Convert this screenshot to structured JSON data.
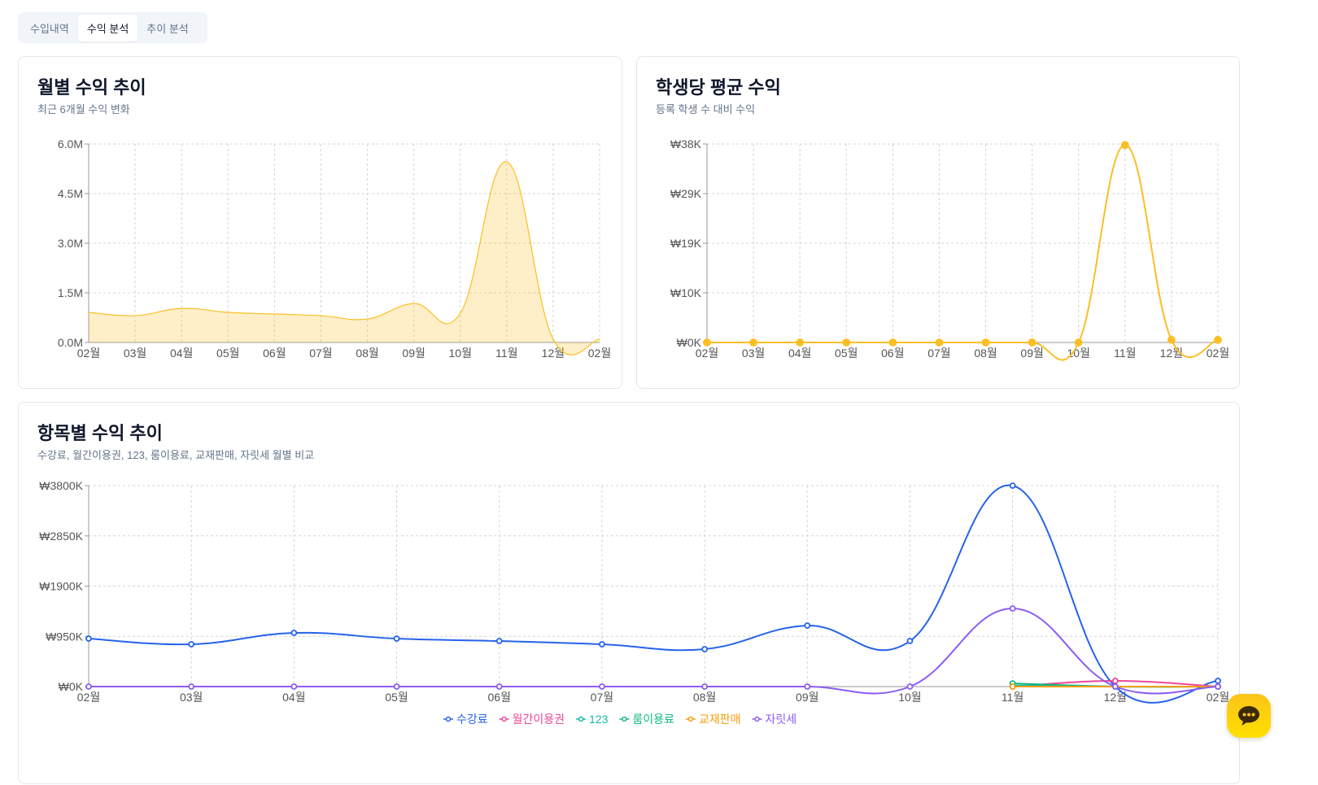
{
  "tabs": [
    {
      "label": "수입내역"
    },
    {
      "label": "수익 분석"
    },
    {
      "label": "추이 분석"
    }
  ],
  "active_tab": 1,
  "chart_data": [
    {
      "type": "area",
      "title": "월별 수익 추이",
      "subtitle": "최근 6개월 수익 변화",
      "categories": [
        "02월",
        "03월",
        "04월",
        "05월",
        "06월",
        "07월",
        "08월",
        "09월",
        "10월",
        "11월",
        "12월",
        "02월"
      ],
      "yticks": [
        "0.0M",
        "1.5M",
        "3.0M",
        "4.5M",
        "6.0M"
      ],
      "ylim": [
        0,
        6.0
      ],
      "series": [
        {
          "name": "수익",
          "color": "#fbbf24",
          "values": [
            0.91,
            0.81,
            1.03,
            0.91,
            0.86,
            0.81,
            0.71,
            1.18,
            0.88,
            5.46,
            0.1,
            0.1
          ]
        }
      ],
      "grid": true
    },
    {
      "type": "line",
      "title": "학생당 평균 수익",
      "subtitle": "등록 학생 수 대비 수익",
      "categories": [
        "02월",
        "03월",
        "04월",
        "05월",
        "06월",
        "07월",
        "08월",
        "09월",
        "10월",
        "11월",
        "12월",
        "02월"
      ],
      "yticks": [
        "₩0K",
        "₩10K",
        "₩19K",
        "₩29K",
        "₩38K"
      ],
      "ylim": [
        0,
        38
      ],
      "series": [
        {
          "name": "학생당 평균",
          "color": "#fbbf24",
          "values": [
            0,
            0,
            0,
            0,
            0,
            0,
            0,
            0,
            0,
            37.8,
            0.5,
            0.5
          ]
        }
      ],
      "grid": true
    },
    {
      "type": "line",
      "title": "항목별 수익 추이",
      "subtitle": "수강료, 월간이용권, 123, 룸이용료, 교재판매, 자릿세 월별 비교",
      "categories": [
        "02월",
        "03월",
        "04월",
        "05월",
        "06월",
        "07월",
        "08월",
        "09월",
        "10월",
        "11월",
        "12월",
        "02월"
      ],
      "yticks": [
        "₩0K",
        "₩950K",
        "₩1900K",
        "₩2850K",
        "₩3800K"
      ],
      "ylim": [
        0,
        3800
      ],
      "legend": "bottom",
      "series": [
        {
          "name": "수강료",
          "color": "#2563eb",
          "values": [
            907,
            800,
            1015,
            907,
            861,
            800,
            708,
            1154,
            861,
            3800,
            0,
            108
          ]
        },
        {
          "name": "월간이용권",
          "color": "#ec4899",
          "values": [
            null,
            null,
            null,
            null,
            null,
            null,
            null,
            null,
            null,
            0,
            108,
            0
          ]
        },
        {
          "name": "123",
          "color": "#14b8a6",
          "values": [
            null,
            null,
            null,
            null,
            null,
            null,
            null,
            null,
            null,
            20,
            0,
            0
          ]
        },
        {
          "name": "룸이용료",
          "color": "#10b981",
          "values": [
            null,
            null,
            null,
            null,
            null,
            null,
            null,
            null,
            null,
            60,
            0,
            0
          ]
        },
        {
          "name": "교재판매",
          "color": "#f59e0b",
          "values": [
            null,
            null,
            null,
            null,
            null,
            null,
            null,
            null,
            null,
            0,
            0,
            0
          ]
        },
        {
          "name": "자릿세",
          "color": "#8b5cf6",
          "values": [
            0,
            0,
            0,
            0,
            0,
            0,
            0,
            0,
            0,
            1477,
            0,
            0
          ]
        }
      ],
      "grid": true
    }
  ],
  "chat_icon": "chat-bubble-icon"
}
